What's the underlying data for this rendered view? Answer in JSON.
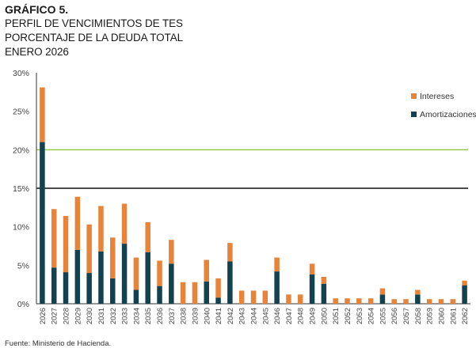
{
  "title": "GRÁFICO 5.",
  "subtitle_1": "PERFIL DE VENCIMIENTOS DE TES",
  "subtitle_2": "PORCENTAJE DE LA DEUDA TOTAL",
  "subtitle_3": "ENERO 2026",
  "source": "Fuente: Ministerio de Hacienda.",
  "colors": {
    "intereses": "#e8843a",
    "amortizaciones": "#12414f",
    "line_green": "#8cc63f",
    "line_gray": "#4a4a4a",
    "axis": "#333333"
  },
  "chart_data": {
    "type": "bar",
    "stacked": true,
    "categories": [
      "2026",
      "2027",
      "2028",
      "2029",
      "2030",
      "2031",
      "2032",
      "2033",
      "2034",
      "2035",
      "2036",
      "2037",
      "2038",
      "2039",
      "2040",
      "2041",
      "2042",
      "2043",
      "2044",
      "2045",
      "2046",
      "2047",
      "2048",
      "2049",
      "2050",
      "2051",
      "2052",
      "2053",
      "2054",
      "2055",
      "2056",
      "2057",
      "2058",
      "2059",
      "2060",
      "2061",
      "2062"
    ],
    "series": [
      {
        "name": "Amortizaciones",
        "color": "#12414f",
        "values": [
          21.0,
          4.7,
          4.1,
          7.0,
          4.0,
          6.8,
          3.3,
          7.8,
          1.8,
          6.7,
          2.3,
          5.2,
          0,
          0,
          2.9,
          0.8,
          5.5,
          0,
          0,
          0,
          4.2,
          0,
          0,
          3.8,
          2.6,
          0,
          0,
          0,
          0,
          1.2,
          0,
          0,
          1.2,
          0,
          0,
          0,
          2.4
        ]
      },
      {
        "name": "Intereses",
        "color": "#e8843a",
        "values": [
          7.1,
          7.6,
          7.3,
          6.9,
          6.3,
          5.9,
          5.3,
          5.2,
          4.2,
          3.9,
          3.3,
          3.1,
          2.8,
          2.8,
          2.8,
          2.5,
          2.4,
          1.7,
          1.7,
          1.7,
          1.8,
          1.2,
          1.2,
          1.4,
          0.9,
          0.7,
          0.7,
          0.7,
          0.7,
          0.8,
          0.6,
          0.6,
          0.6,
          0.6,
          0.6,
          0.6,
          0.6
        ]
      }
    ],
    "reference_lines": [
      {
        "value": 20,
        "color": "#8cc63f"
      },
      {
        "value": 15,
        "color": "#4a4a4a"
      }
    ],
    "ylim": [
      0,
      30
    ],
    "yticks": [
      0,
      5,
      10,
      15,
      20,
      25,
      30
    ],
    "ytick_labels": [
      "0%",
      "5%",
      "10%",
      "15%",
      "20%",
      "25%",
      "30%"
    ],
    "legend_position": "top-right",
    "grid": false
  }
}
